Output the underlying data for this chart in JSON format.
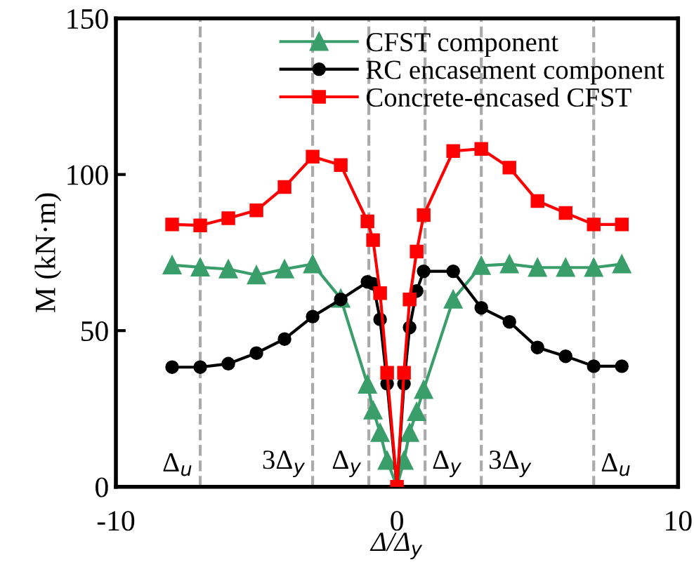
{
  "chart_data": {
    "type": "line",
    "xlabel": "Δ/Δ$_{y}$",
    "ylabel": "M (kN·m)",
    "xlim": [
      -10,
      10
    ],
    "ylim": [
      0,
      150
    ],
    "xticks": [
      -10,
      0,
      10
    ],
    "yticks": [
      0,
      50,
      100,
      150
    ],
    "x": [
      -8,
      -7,
      -6,
      -5,
      -4,
      -3,
      -2,
      -1.05,
      -0.85,
      -0.6,
      -0.35,
      0,
      0.25,
      0.45,
      0.7,
      0.95,
      2,
      3,
      4,
      5,
      6,
      7,
      8
    ],
    "series": [
      {
        "name": "CFST component",
        "color": "#3a9e6a",
        "marker": "triangle",
        "values": [
          71,
          70.3,
          69.7,
          67.8,
          69.7,
          71.3,
          60.3,
          32.8,
          24.5,
          17.3,
          8.4,
          0,
          8.4,
          17.3,
          24,
          31.1,
          60,
          70.8,
          71.3,
          70.2,
          70.2,
          70.2,
          71.3
        ]
      },
      {
        "name": "RC encasement component",
        "color": "#000000",
        "marker": "circle",
        "values": [
          38.3,
          38.3,
          39.4,
          42.8,
          47.3,
          54.5,
          60,
          65.6,
          65,
          53.6,
          33,
          0,
          33,
          51,
          62.7,
          69,
          69,
          57.3,
          52.8,
          44.6,
          41.8,
          38.6,
          38.6
        ]
      },
      {
        "name": "Concrete-encased CFST",
        "color": "#ff0000",
        "marker": "square",
        "values": [
          84,
          83.7,
          86,
          88.5,
          96,
          105.7,
          103,
          85,
          79,
          62,
          36.5,
          0,
          36.5,
          60,
          75.3,
          87,
          107.5,
          108.2,
          102.2,
          91.5,
          87.7,
          84,
          84
        ]
      }
    ],
    "ref_lines": [
      {
        "axis": "x",
        "value": -7,
        "label": "Δ$_{u}$",
        "color": "#aaaaaa",
        "line_style": "dashed"
      },
      {
        "axis": "x",
        "value": -3,
        "label": "3Δ$_{y}$",
        "color": "#aaaaaa",
        "line_style": "dashed"
      },
      {
        "axis": "x",
        "value": -1,
        "label": "Δ$_{y}$",
        "color": "#aaaaaa",
        "line_style": "dashed"
      },
      {
        "axis": "x",
        "value": 1,
        "label": "Δ$_{y}$",
        "color": "#aaaaaa",
        "line_style": "dashed"
      },
      {
        "axis": "x",
        "value": 3,
        "label": "3Δ$_{y}$",
        "color": "#aaaaaa",
        "line_style": "dashed"
      },
      {
        "axis": "x",
        "value": 7,
        "label": "Δ$_{u}$",
        "color": "#aaaaaa",
        "line_style": "dashed"
      }
    ],
    "legend": "top right",
    "grid": false
  }
}
